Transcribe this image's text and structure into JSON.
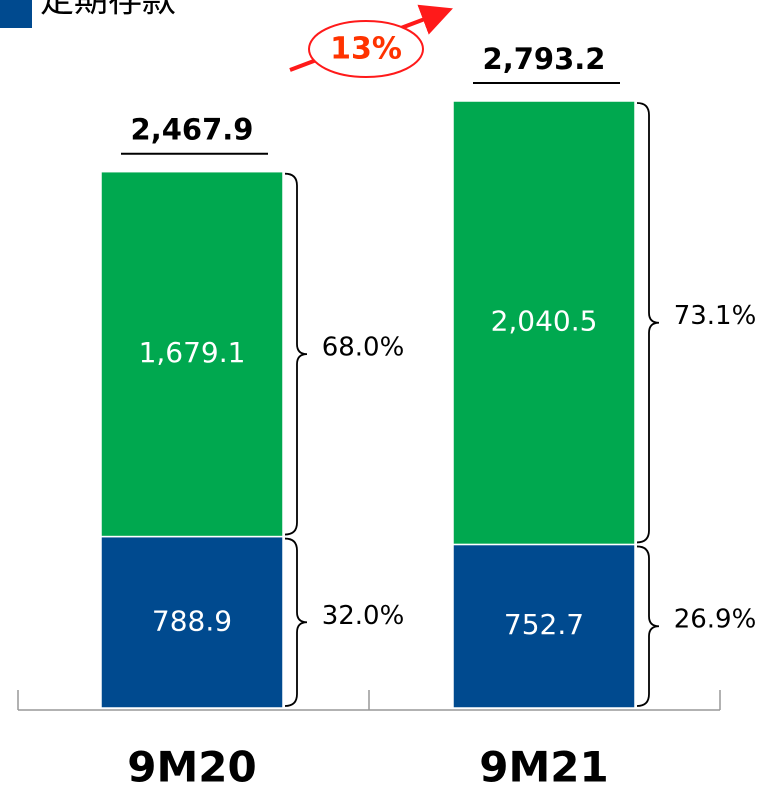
{
  "chart_data": {
    "type": "stacked_bar",
    "categories": [
      "9M20",
      "9M21"
    ],
    "series": [
      {
        "name": "定期存款",
        "color": "#004a8f",
        "values": [
          788.9,
          752.7
        ],
        "value_labels": [
          "788.9",
          "752.7"
        ],
        "share_values": [
          32.0,
          26.9
        ],
        "share_labels": [
          "32.0%",
          "26.9%"
        ]
      },
      {
        "color": "#00a84f",
        "values": [
          1679.1,
          2040.5
        ],
        "value_labels": [
          "1,679.1",
          "2,040.5"
        ],
        "share_values": [
          68.0,
          73.1
        ],
        "share_labels": [
          "68.0%",
          "73.1%"
        ]
      }
    ],
    "totals": [
      {
        "value": 2467.9,
        "label": "2,467.9"
      },
      {
        "value": 2793.2,
        "label": "2,793.2"
      }
    ],
    "annotation": {
      "value": 13,
      "label": "13%"
    }
  }
}
